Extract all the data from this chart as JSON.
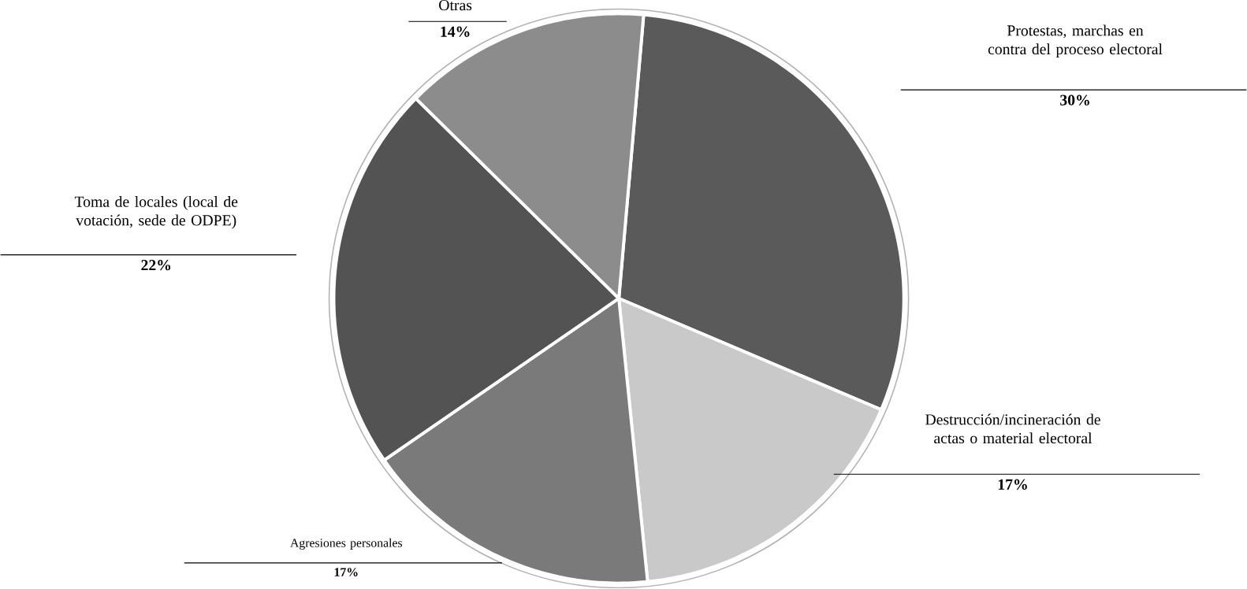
{
  "chart_data": {
    "type": "pie",
    "categories": [
      "Protestas, marchas en contra del proceso electoral",
      "Destrucción/incineración de actas o material electoral",
      "Agresiones personales",
      "Toma de locales (local de votación, sede de ODPE)",
      "Otras"
    ],
    "values": [
      30,
      17,
      17,
      22,
      14
    ],
    "value_labels": [
      "30%",
      "17%",
      "17%",
      "22%",
      "14%"
    ],
    "colors": [
      "#5a5a5a",
      "#c9c9c9",
      "#7a7a7a",
      "#535353",
      "#8c8c8c"
    ]
  }
}
